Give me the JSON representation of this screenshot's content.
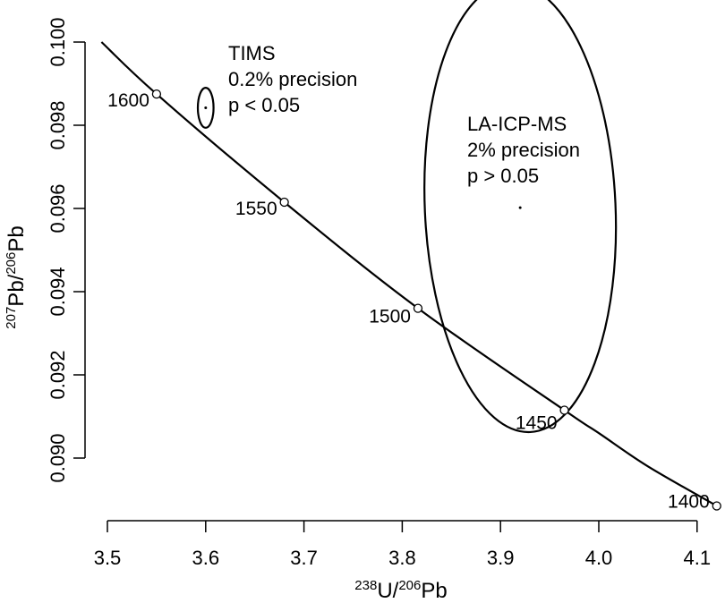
{
  "chart_data": {
    "type": "scatter",
    "title": "",
    "x_axis": {
      "label_parts": [
        {
          "text": "238",
          "sup": true
        },
        {
          "text": "U/",
          "sup": false
        },
        {
          "text": "206",
          "sup": true
        },
        {
          "text": "Pb",
          "sup": false
        }
      ],
      "range": [
        3.5,
        4.1
      ],
      "ticks": [
        "3.5",
        "3.6",
        "3.7",
        "3.8",
        "3.9",
        "4.0",
        "4.1"
      ]
    },
    "y_axis": {
      "label_parts": [
        {
          "text": "207",
          "sup": true
        },
        {
          "text": "Pb/",
          "sup": false
        },
        {
          "text": "206",
          "sup": true
        },
        {
          "text": "Pb",
          "sup": false
        }
      ],
      "range": [
        0.09,
        0.1
      ],
      "ticks": [
        "0.090",
        "0.092",
        "0.094",
        "0.096",
        "0.098",
        "0.100"
      ]
    },
    "grid": false,
    "concordia": {
      "curve_x": [
        3.494,
        3.55,
        3.68,
        3.816,
        3.965,
        4.0,
        4.05,
        4.12
      ],
      "curve_y": [
        0.1,
        0.09875,
        0.09615,
        0.0936,
        0.09115,
        0.0906,
        0.0898,
        0.08885
      ],
      "age_markers": [
        {
          "age": "1600",
          "x": 3.55,
          "y": 0.09875
        },
        {
          "age": "1550",
          "x": 3.68,
          "y": 0.09615
        },
        {
          "age": "1500",
          "x": 3.816,
          "y": 0.0936
        },
        {
          "age": "1450",
          "x": 3.965,
          "y": 0.09115
        },
        {
          "age": "1400",
          "x": 4.12,
          "y": 0.08885
        }
      ]
    },
    "ellipses": [
      {
        "name": "TIMS",
        "cx": 3.6,
        "cy": 0.09842,
        "rx": 0.008,
        "ry": 0.00048,
        "lines": [
          "TIMS",
          "0.2% precision",
          "p < 0.05"
        ]
      },
      {
        "name": "LA-ICP-MS",
        "cx": 3.92,
        "cy": 0.09602,
        "rx": 0.097,
        "ry": 0.0054,
        "tilt": -0.045,
        "lines": [
          "LA-ICP-MS",
          "2% precision",
          "p > 0.05"
        ]
      }
    ]
  }
}
